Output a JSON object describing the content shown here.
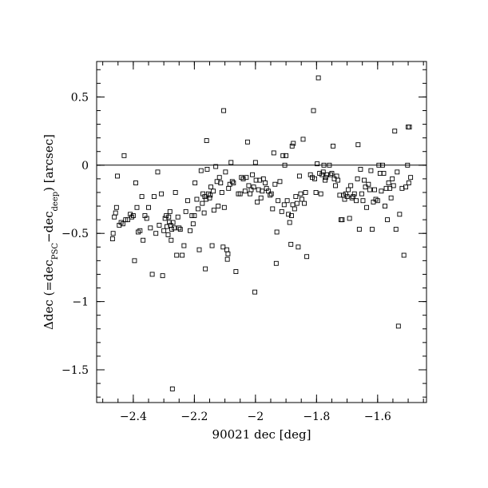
{
  "chart_data": {
    "type": "scatter",
    "xlabel": "90021 dec [deg]",
    "ylabel": {
      "prefix": "Δdec (=dec",
      "sub1": "PSC",
      "mid": "−dec",
      "sub2": "deep",
      "suffix": ") [arcsec]"
    },
    "xlim": [
      -2.52,
      -1.44
    ],
    "ylim": [
      -1.74,
      0.76
    ],
    "x_ticks": [
      {
        "value": -2.4,
        "label": "−2.4"
      },
      {
        "value": -2.2,
        "label": "−2.2"
      },
      {
        "value": -2.0,
        "label": "−2"
      },
      {
        "value": -1.8,
        "label": "−1.8"
      },
      {
        "value": -1.6,
        "label": "−1.6"
      }
    ],
    "y_ticks": [
      {
        "value": 0.5,
        "label": "0.5"
      },
      {
        "value": 0.0,
        "label": "0"
      },
      {
        "value": -0.5,
        "label": "−0.5"
      },
      {
        "value": -1.0,
        "label": "−1"
      },
      {
        "value": -1.5,
        "label": "−1.5"
      }
    ],
    "minor_x_step": 0.05,
    "minor_y_step": 0.1,
    "reference_line_y": 0,
    "marker": "open-square",
    "points": [
      [
        -2.468,
        -0.54
      ],
      [
        -2.466,
        -0.5
      ],
      [
        -2.462,
        -0.38
      ],
      [
        -2.458,
        -0.35
      ],
      [
        -2.455,
        -0.31
      ],
      [
        -2.452,
        -0.08
      ],
      [
        -2.446,
        -0.44
      ],
      [
        -2.44,
        -0.42
      ],
      [
        -2.434,
        -0.43
      ],
      [
        -2.43,
        0.07
      ],
      [
        -2.425,
        -0.4
      ],
      [
        -2.418,
        -0.4
      ],
      [
        -2.41,
        -0.36
      ],
      [
        -2.405,
        -0.38
      ],
      [
        -2.4,
        -0.37
      ],
      [
        -2.396,
        -0.7
      ],
      [
        -2.392,
        -0.13
      ],
      [
        -2.388,
        -0.31
      ],
      [
        -2.384,
        -0.49
      ],
      [
        -2.378,
        -0.48
      ],
      [
        -2.372,
        -0.23
      ],
      [
        -2.368,
        -0.55
      ],
      [
        -2.362,
        -0.37
      ],
      [
        -2.356,
        -0.39
      ],
      [
        -2.35,
        -0.31
      ],
      [
        -2.344,
        -0.46
      ],
      [
        -2.338,
        -0.8
      ],
      [
        -2.332,
        -0.23
      ],
      [
        -2.326,
        -0.5
      ],
      [
        -2.32,
        -0.05
      ],
      [
        -2.315,
        -0.44
      ],
      [
        -2.308,
        -0.21
      ],
      [
        -2.304,
        -0.81
      ],
      [
        -2.3,
        -0.48
      ],
      [
        -2.296,
        -0.39
      ],
      [
        -2.292,
        -0.37
      ],
      [
        -2.29,
        -0.45
      ],
      [
        -2.286,
        -0.51
      ],
      [
        -2.284,
        -0.38
      ],
      [
        -2.282,
        -0.42
      ],
      [
        -2.28,
        -0.34
      ],
      [
        -2.278,
        -0.44
      ],
      [
        -2.276,
        -0.55
      ],
      [
        -2.274,
        -0.47
      ],
      [
        -2.272,
        -1.64
      ],
      [
        -2.27,
        -0.42
      ],
      [
        -2.266,
        -0.46
      ],
      [
        -2.262,
        -0.2
      ],
      [
        -2.258,
        -0.66
      ],
      [
        -2.254,
        -0.38
      ],
      [
        -2.25,
        -0.46
      ],
      [
        -2.246,
        -0.47
      ],
      [
        -2.24,
        -0.66
      ],
      [
        -2.234,
        -0.59
      ],
      [
        -2.228,
        -0.34
      ],
      [
        -2.222,
        -0.26
      ],
      [
        -2.214,
        -0.48
      ],
      [
        -2.208,
        -0.37
      ],
      [
        -2.204,
        -0.43
      ],
      [
        -2.2,
        -0.37
      ],
      [
        -2.198,
        -0.13
      ],
      [
        -2.192,
        -0.25
      ],
      [
        -2.188,
        -0.32
      ],
      [
        -2.184,
        -0.62
      ],
      [
        -2.178,
        -0.04
      ],
      [
        -2.174,
        -0.28
      ],
      [
        -2.172,
        -0.21
      ],
      [
        -2.168,
        -0.35
      ],
      [
        -2.166,
        -0.23
      ],
      [
        -2.164,
        -0.76
      ],
      [
        -2.162,
        -0.25
      ],
      [
        -2.16,
        0.18
      ],
      [
        -2.158,
        -0.03
      ],
      [
        -2.154,
        -0.21
      ],
      [
        -2.15,
        -0.24
      ],
      [
        -2.148,
        -0.22
      ],
      [
        -2.146,
        -0.16
      ],
      [
        -2.142,
        -0.59
      ],
      [
        -2.138,
        -0.19
      ],
      [
        -2.136,
        -0.33
      ],
      [
        -2.13,
        -0.01
      ],
      [
        -2.126,
        -0.12
      ],
      [
        -2.122,
        -0.3
      ],
      [
        -2.118,
        -0.09
      ],
      [
        -2.114,
        -0.13
      ],
      [
        -2.11,
        -0.2
      ],
      [
        -2.106,
        -0.6
      ],
      [
        -2.104,
        0.4
      ],
      [
        -2.102,
        -0.31
      ],
      [
        -2.098,
        -0.05
      ],
      [
        -2.094,
        -0.62
      ],
      [
        -2.092,
        -0.69
      ],
      [
        -2.09,
        -0.65
      ],
      [
        -2.088,
        -0.17
      ],
      [
        -2.084,
        -0.14
      ],
      [
        -2.08,
        0.02
      ],
      [
        -2.076,
        -0.12
      ],
      [
        -2.072,
        -0.13
      ],
      [
        -2.064,
        -0.78
      ],
      [
        -2.056,
        -0.21
      ],
      [
        -2.05,
        -0.21
      ],
      [
        -2.046,
        -0.09
      ],
      [
        -2.04,
        -0.1
      ],
      [
        -2.034,
        -0.19
      ],
      [
        -2.03,
        -0.09
      ],
      [
        -2.026,
        0.17
      ],
      [
        -2.022,
        -0.15
      ],
      [
        -2.018,
        -0.21
      ],
      [
        -2.014,
        -0.18
      ],
      [
        -2.01,
        -0.07
      ],
      [
        -2.006,
        -0.16
      ],
      [
        -2.002,
        -0.93
      ],
      [
        -2.0,
        0.02
      ],
      [
        -1.998,
        -0.11
      ],
      [
        -1.994,
        -0.27
      ],
      [
        -1.99,
        -0.18
      ],
      [
        -1.986,
        -0.11
      ],
      [
        -1.982,
        -0.24
      ],
      [
        -1.978,
        -0.19
      ],
      [
        -1.974,
        -0.1
      ],
      [
        -1.968,
        -0.13
      ],
      [
        -1.964,
        -0.17
      ],
      [
        -1.958,
        -0.19
      ],
      [
        -1.952,
        -0.22
      ],
      [
        -1.948,
        -0.21
      ],
      [
        -1.944,
        -0.32
      ],
      [
        -1.94,
        0.09
      ],
      [
        -1.936,
        -0.14
      ],
      [
        -1.932,
        -0.72
      ],
      [
        -1.93,
        -0.49
      ],
      [
        -1.926,
        -0.26
      ],
      [
        -1.92,
        -0.12
      ],
      [
        -1.914,
        -0.34
      ],
      [
        -1.91,
        0.07
      ],
      [
        -1.906,
        -0.29
      ],
      [
        -1.904,
        0.0
      ],
      [
        -1.9,
        0.07
      ],
      [
        -1.896,
        -0.26
      ],
      [
        -1.892,
        -0.36
      ],
      [
        -1.888,
        -0.42
      ],
      [
        -1.884,
        -0.58
      ],
      [
        -1.882,
        -0.37
      ],
      [
        -1.88,
        0.14
      ],
      [
        -1.878,
        -0.29
      ],
      [
        -1.876,
        0.16
      ],
      [
        -1.872,
        -0.32
      ],
      [
        -1.868,
        -0.23
      ],
      [
        -1.864,
        -0.28
      ],
      [
        -1.86,
        -0.6
      ],
      [
        -1.856,
        -0.08
      ],
      [
        -1.852,
        -0.21
      ],
      [
        -1.848,
        -0.25
      ],
      [
        -1.844,
        0.19
      ],
      [
        -1.84,
        -0.28
      ],
      [
        -1.836,
        -0.2
      ],
      [
        -1.832,
        -0.67
      ],
      [
        -1.82,
        -0.07
      ],
      [
        -1.814,
        -0.09
      ],
      [
        -1.81,
        0.4
      ],
      [
        -1.806,
        -0.1
      ],
      [
        -1.802,
        -0.2
      ],
      [
        -1.798,
        0.01
      ],
      [
        -1.794,
        0.64
      ],
      [
        -1.79,
        -0.06
      ],
      [
        -1.786,
        -0.21
      ],
      [
        -1.782,
        -0.07
      ],
      [
        -1.778,
        -0.05
      ],
      [
        -1.776,
        0.0
      ],
      [
        -1.772,
        -0.11
      ],
      [
        -1.77,
        -0.09
      ],
      [
        -1.766,
        -0.07
      ],
      [
        -1.758,
        0.0
      ],
      [
        -1.754,
        -0.07
      ],
      [
        -1.75,
        -0.06
      ],
      [
        -1.746,
        0.14
      ],
      [
        -1.742,
        -0.1
      ],
      [
        -1.738,
        -0.15
      ],
      [
        -1.734,
        -0.08
      ],
      [
        -1.73,
        -0.11
      ],
      [
        -1.724,
        -0.22
      ],
      [
        -1.72,
        -0.4
      ],
      [
        -1.716,
        -0.4
      ],
      [
        -1.712,
        -0.22
      ],
      [
        -1.708,
        -0.25
      ],
      [
        -1.704,
        -0.21
      ],
      [
        -1.7,
        -0.23
      ],
      [
        -1.696,
        -0.18
      ],
      [
        -1.692,
        -0.39
      ],
      [
        -1.688,
        -0.15
      ],
      [
        -1.684,
        -0.24
      ],
      [
        -1.68,
        -0.23
      ],
      [
        -1.676,
        -0.21
      ],
      [
        -1.67,
        -0.26
      ],
      [
        -1.666,
        -0.1
      ],
      [
        -1.664,
        0.15
      ],
      [
        -1.66,
        -0.47
      ],
      [
        -1.656,
        -0.03
      ],
      [
        -1.652,
        -0.21
      ],
      [
        -1.648,
        -0.26
      ],
      [
        -1.644,
        -0.11
      ],
      [
        -1.64,
        -0.16
      ],
      [
        -1.636,
        -0.31
      ],
      [
        -1.63,
        -0.14
      ],
      [
        -1.626,
        -0.18
      ],
      [
        -1.622,
        -0.04
      ],
      [
        -1.618,
        -0.47
      ],
      [
        -1.614,
        -0.27
      ],
      [
        -1.61,
        -0.18
      ],
      [
        -1.606,
        -0.25
      ],
      [
        -1.6,
        -0.26
      ],
      [
        -1.596,
        0.0
      ],
      [
        -1.592,
        -0.06
      ],
      [
        -1.588,
        -0.19
      ],
      [
        -1.584,
        0.0
      ],
      [
        -1.58,
        -0.06
      ],
      [
        -1.576,
        -0.3
      ],
      [
        -1.572,
        -0.17
      ],
      [
        -1.568,
        -0.4
      ],
      [
        -1.564,
        -0.13
      ],
      [
        -1.56,
        -0.17
      ],
      [
        -1.556,
        -0.24
      ],
      [
        -1.552,
        -0.1
      ],
      [
        -1.548,
        -0.15
      ],
      [
        -1.544,
        0.25
      ],
      [
        -1.54,
        -0.47
      ],
      [
        -1.536,
        -0.05
      ],
      [
        -1.532,
        -1.18
      ],
      [
        -1.528,
        -0.36
      ],
      [
        -1.52,
        -0.17
      ],
      [
        -1.514,
        -0.66
      ],
      [
        -1.508,
        -0.16
      ],
      [
        -1.502,
        0.0
      ],
      [
        -1.5,
        0.28
      ],
      [
        -1.498,
        -0.13
      ],
      [
        -1.496,
        0.28
      ],
      [
        -1.492,
        -0.09
      ]
    ]
  }
}
